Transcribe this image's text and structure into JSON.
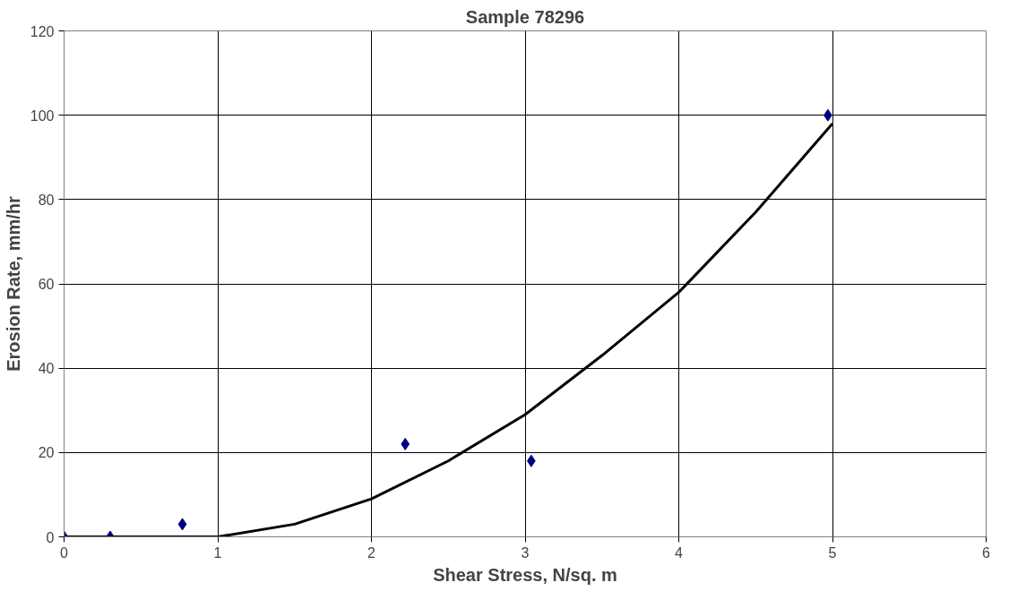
{
  "chart_data": {
    "type": "scatter",
    "title": "Sample 78296",
    "xlabel": "Shear Stress, N/sq. m",
    "ylabel": "Erosion Rate, mm/hr",
    "xlim": [
      0,
      6
    ],
    "xticks": [
      0,
      1,
      2,
      3,
      4,
      5,
      6
    ],
    "ylim": [
      0,
      120
    ],
    "yticks": [
      0,
      20,
      40,
      60,
      80,
      100,
      120
    ],
    "grid": true,
    "series": [
      {
        "color": "#000080",
        "marker": "diamond",
        "x": [
          0,
          0.3,
          0.77,
          2.22,
          3.04,
          4.97
        ],
        "values": [
          0,
          0,
          3,
          22,
          18,
          100
        ]
      },
      {
        "type": "line",
        "color": "#000000",
        "marker": "none",
        "line_style": "solid",
        "x": [
          0,
          0.5,
          1,
          1.5,
          2,
          2.5,
          3,
          3.5,
          4,
          4.5,
          5
        ],
        "values": [
          0,
          0,
          0,
          3,
          9,
          18,
          29,
          43,
          58,
          77,
          98
        ]
      }
    ]
  }
}
